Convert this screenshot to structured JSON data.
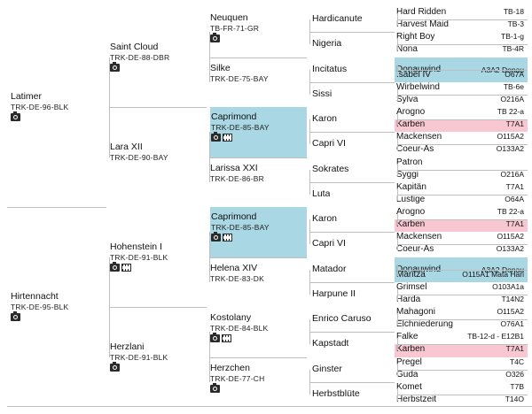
{
  "colors": {
    "highlight_blue": "#a9d7e4",
    "highlight_pink": "#f8c7d1",
    "grid": "#bfbfbf"
  },
  "g1": [
    {
      "name": "Latimer",
      "code": "TRK-DE-96-BLK",
      "icons": [
        "camera-icon"
      ]
    },
    {
      "name": "Hirtennacht",
      "code": "TRK-DE-95-BLK",
      "icons": [
        "camera-icon"
      ]
    }
  ],
  "g2": [
    {
      "name": "Saint Cloud",
      "code": "TRK-DE-88-DBR",
      "icons": [
        "camera-icon"
      ]
    },
    {
      "name": "Lara XII",
      "code": "TRK-DE-90-BAY",
      "icons": []
    },
    {
      "name": "Hohenstein I",
      "code": "TRK-DE-91-BLK",
      "icons": [
        "camera-icon",
        "video-icon"
      ]
    },
    {
      "name": "Herzlani",
      "code": "TRK-DE-91-BLK",
      "icons": [
        "camera-icon"
      ]
    }
  ],
  "g3": [
    {
      "name": "Neuquen",
      "code": "TB-FR-71-GR",
      "icons": [
        "camera-icon"
      ]
    },
    {
      "name": "Silke",
      "code": "TRK-DE-75-BAY",
      "icons": []
    },
    {
      "name": "Caprimond",
      "code": "TRK-DE-85-BAY",
      "icons": [
        "camera-icon",
        "video-icon"
      ]
    },
    {
      "name": "Larissa XXI",
      "code": "TRK-DE-86-BR",
      "icons": []
    },
    {
      "name": "Caprimond",
      "code": "TRK-DE-85-BAY",
      "icons": [
        "camera-icon",
        "video-icon"
      ]
    },
    {
      "name": "Helena XIV",
      "code": "TRK-DE-83-DK",
      "icons": []
    },
    {
      "name": "Kostolany",
      "code": "TRK-DE-84-BLK",
      "icons": [
        "camera-icon",
        "video-icon"
      ]
    },
    {
      "name": "Herzchen",
      "code": "TRK-DE-77-CH",
      "icons": [
        "camera-icon"
      ]
    }
  ],
  "g4": [
    "Hardicanute",
    "Nigeria",
    "Incitatus",
    "Sissi",
    "Karon",
    "Capri VI",
    "Sokrates",
    "Luta",
    "Karon",
    "Capri VI",
    "Matador",
    "Harpune II",
    "Enrico Caruso",
    "Kapstadt",
    "Ginster",
    "Herbstblüte"
  ],
  "g5": [
    {
      "name": "Hard Ridden",
      "code": "TB-18"
    },
    {
      "name": "Harvest Maid",
      "code": "TB-3"
    },
    {
      "name": "Right Boy",
      "code": "TB-1-g"
    },
    {
      "name": "Nona",
      "code": "TB-4R"
    },
    {
      "name": "Donauwind",
      "code": "A3A2 Donau"
    },
    {
      "name": "Isabel IV",
      "code": "O67A"
    },
    {
      "name": "Wirbelwind",
      "code": "TB-6e"
    },
    {
      "name": "Sylva",
      "code": "O216A"
    },
    {
      "name": "Arogno",
      "code": "TB 22-a"
    },
    {
      "name": "Karben",
      "code": "T7A1"
    },
    {
      "name": "Mackensen",
      "code": "O115A2"
    },
    {
      "name": "Coeur-As",
      "code": "O133A2"
    },
    {
      "name": "Patron",
      "code": ""
    },
    {
      "name": "Syggi",
      "code": "O216A"
    },
    {
      "name": "Kapitän",
      "code": "T7A1"
    },
    {
      "name": "Lustige",
      "code": "O64A"
    },
    {
      "name": "Arogno",
      "code": "TB 22-a"
    },
    {
      "name": "Karben",
      "code": "T7A1"
    },
    {
      "name": "Mackensen",
      "code": "O115A2"
    },
    {
      "name": "Coeur-As",
      "code": "O133A2"
    },
    {
      "name": "Donauwind",
      "code": "A3A2 Donau"
    },
    {
      "name": "Maritza",
      "code": "O115A1 Mata Hari"
    },
    {
      "name": "Grimsel",
      "code": "O103A1a"
    },
    {
      "name": "Harda",
      "code": "T14N2"
    },
    {
      "name": "Mahagoni",
      "code": "O115A2"
    },
    {
      "name": "Elchniederung",
      "code": "O76A1"
    },
    {
      "name": "Falke",
      "code": "TB-12-d - E12B1"
    },
    {
      "name": "Karben",
      "code": "T7A1"
    },
    {
      "name": "Pregel",
      "code": "T4C"
    },
    {
      "name": "Guda",
      "code": "O326"
    },
    {
      "name": "Komet",
      "code": "T7B"
    },
    {
      "name": "Herbstzeit",
      "code": "T14O"
    }
  ]
}
